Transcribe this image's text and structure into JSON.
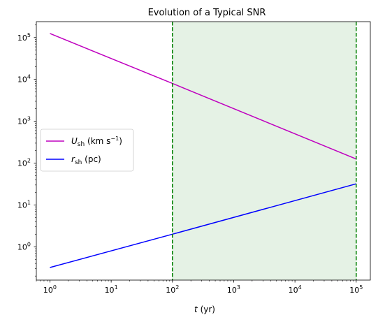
{
  "chart_data": {
    "type": "line",
    "title": "Evolution of a Typical SNR",
    "xlabel": {
      "var": "t",
      "unit": " (yr)"
    },
    "ylabel": "",
    "xscale": "log",
    "yscale": "log",
    "xlim": [
      0.6,
      170000
    ],
    "ylim": [
      0.16,
      240000
    ],
    "xticks": [
      {
        "value": 1,
        "base": "10",
        "exp": "0"
      },
      {
        "value": 10,
        "base": "10",
        "exp": "1"
      },
      {
        "value": 100,
        "base": "10",
        "exp": "2"
      },
      {
        "value": 1000,
        "base": "10",
        "exp": "3"
      },
      {
        "value": 10000,
        "base": "10",
        "exp": "4"
      },
      {
        "value": 100000,
        "base": "10",
        "exp": "5"
      }
    ],
    "yticks": [
      {
        "value": 1,
        "base": "10",
        "exp": "0"
      },
      {
        "value": 10,
        "base": "10",
        "exp": "1"
      },
      {
        "value": 100,
        "base": "10",
        "exp": "2"
      },
      {
        "value": 1000,
        "base": "10",
        "exp": "3"
      },
      {
        "value": 10000,
        "base": "10",
        "exp": "4"
      },
      {
        "value": 100000,
        "base": "10",
        "exp": "5"
      }
    ],
    "series": [
      {
        "var": "U",
        "sub": "sh",
        "unit_pre": " (km s",
        "unit_sup": "−1",
        "unit_post": ")",
        "color": "#bf00bf",
        "x": [
          1,
          100,
          100000
        ],
        "y": [
          125000,
          8000,
          125
        ]
      },
      {
        "var": "r",
        "sub": "sh",
        "unit_pre": " (pc)",
        "unit_sup": "",
        "unit_post": "",
        "color": "#0000ff",
        "x": [
          1,
          100,
          100000
        ],
        "y": [
          0.32,
          2.0,
          32
        ]
      }
    ],
    "vlines": {
      "x": [
        100,
        100000
      ],
      "color": "#008000",
      "style": "dashed"
    },
    "shaded_region": {
      "x": [
        100,
        100000
      ],
      "color": "#e5f2e5"
    },
    "legend": "center-left",
    "grid": false
  }
}
